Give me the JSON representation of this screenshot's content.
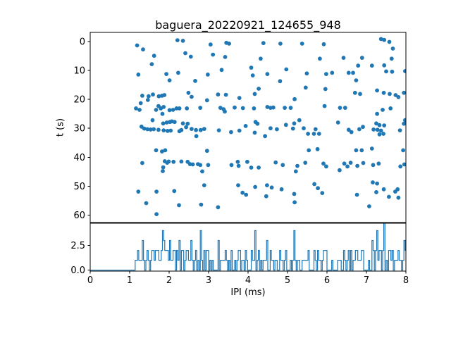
{
  "figure": {
    "title": "baguera_20220921_124655_948",
    "background_color": "#ffffff",
    "accent_color": "#1f77b4"
  },
  "chart_data": [
    {
      "type": "scatter",
      "title": "baguera_20220921_124655_948",
      "xlabel": "",
      "ylabel": "t (s)",
      "xlim": [
        0,
        8
      ],
      "ylim": [
        -3.2,
        62.6
      ],
      "y_inverted": true,
      "grid": false,
      "legend": "none",
      "xticks": [],
      "yticks": [
        0,
        10,
        20,
        30,
        40,
        50,
        60
      ],
      "ytick_labels": [
        "0",
        "10",
        "20",
        "30",
        "40",
        "50",
        "60"
      ],
      "marker_color": "#1f77b4",
      "points_xy_ipi_t": [
        [
          1.19,
          1.3
        ],
        [
          1.34,
          2.7
        ],
        [
          1.62,
          4.9
        ],
        [
          2.21,
          -0.5
        ],
        [
          2.35,
          -0.3
        ],
        [
          2.41,
          4.0
        ],
        [
          2.55,
          5.2
        ],
        [
          1.56,
          7.8
        ],
        [
          1.22,
          11.4
        ],
        [
          1.93,
          11.2
        ],
        [
          2.01,
          13.4
        ],
        [
          2.23,
          10.8
        ],
        [
          2.66,
          13.6
        ],
        [
          1.32,
          18.7
        ],
        [
          1.48,
          18.9
        ],
        [
          1.59,
          18.3
        ],
        [
          1.74,
          18.9
        ],
        [
          1.82,
          18.7
        ],
        [
          1.88,
          18.5
        ],
        [
          2.49,
          17.7
        ],
        [
          2.57,
          19.1
        ],
        [
          1.46,
          20.2
        ],
        [
          1.28,
          21.3
        ],
        [
          1.73,
          22.3
        ],
        [
          1.79,
          23.1
        ],
        [
          1.86,
          22.6
        ],
        [
          1.16,
          23.1
        ],
        [
          1.25,
          23.6
        ],
        [
          1.67,
          23.6
        ],
        [
          2.01,
          23.7
        ],
        [
          2.1,
          23.6
        ],
        [
          2.19,
          23.1
        ],
        [
          2.26,
          23.1
        ],
        [
          2.45,
          23.1
        ],
        [
          1.83,
          25.0
        ],
        [
          1.58,
          27.2
        ],
        [
          1.85,
          28.3
        ],
        [
          1.94,
          28.0
        ],
        [
          2.02,
          27.8
        ],
        [
          2.07,
          27.6
        ],
        [
          2.14,
          27.8
        ],
        [
          2.35,
          28.3
        ],
        [
          2.47,
          28.4
        ],
        [
          1.3,
          29.4
        ],
        [
          1.37,
          30.1
        ],
        [
          1.45,
          30.3
        ],
        [
          1.53,
          30.4
        ],
        [
          1.61,
          30.3
        ],
        [
          1.73,
          30.5
        ],
        [
          1.86,
          30.7
        ],
        [
          1.96,
          30.9
        ],
        [
          2.04,
          30.8
        ],
        [
          2.26,
          31.0
        ],
        [
          2.31,
          30.6
        ],
        [
          2.43,
          29.6
        ],
        [
          2.57,
          30.2
        ],
        [
          2.68,
          30.6
        ],
        [
          1.67,
          37.6
        ],
        [
          1.82,
          38.0
        ],
        [
          1.9,
          37.6
        ],
        [
          1.32,
          42.0
        ],
        [
          1.89,
          41.4
        ],
        [
          1.95,
          41.9
        ],
        [
          1.99,
          41.5
        ],
        [
          2.11,
          41.6
        ],
        [
          2.31,
          41.5
        ],
        [
          2.47,
          41.6
        ],
        [
          1.85,
          43.5
        ],
        [
          1.84,
          44.8
        ],
        [
          2.53,
          42.4
        ],
        [
          2.6,
          42.5
        ],
        [
          1.22,
          51.9
        ],
        [
          1.68,
          51.9
        ],
        [
          2.13,
          51.7
        ],
        [
          1.42,
          55.9
        ],
        [
          2.25,
          56.6
        ],
        [
          1.68,
          59.7
        ],
        [
          3.05,
          1.0
        ],
        [
          3.45,
          0.4
        ],
        [
          3.52,
          0.7
        ],
        [
          4.39,
          0.5
        ],
        [
          4.82,
          0.7
        ],
        [
          3.11,
          4.5
        ],
        [
          3.42,
          5.3
        ],
        [
          4.32,
          5.9
        ],
        [
          4.08,
          9.0
        ],
        [
          3.33,
          9.8
        ],
        [
          2.98,
          11.4
        ],
        [
          4.12,
          11.7
        ],
        [
          4.49,
          11.2
        ],
        [
          4.97,
          9.6
        ],
        [
          4.81,
          13.7
        ],
        [
          4.27,
          16.3
        ],
        [
          3.24,
          18.3
        ],
        [
          3.44,
          18.4
        ],
        [
          4.17,
          18.1
        ],
        [
          3.78,
          19.5
        ],
        [
          2.96,
          20.3
        ],
        [
          5.18,
          19.9
        ],
        [
          2.79,
          22.9
        ],
        [
          3.3,
          22.9
        ],
        [
          3.38,
          23.4
        ],
        [
          3.41,
          24.2
        ],
        [
          3.66,
          22.8
        ],
        [
          3.87,
          23.0
        ],
        [
          4.15,
          23.1
        ],
        [
          4.49,
          22.6
        ],
        [
          4.57,
          22.9
        ],
        [
          4.64,
          22.8
        ],
        [
          4.93,
          22.9
        ],
        [
          5.08,
          22.9
        ],
        [
          5.17,
          28.3
        ],
        [
          4.96,
          28.8
        ],
        [
          4.19,
          27.8
        ],
        [
          4.24,
          28.4
        ],
        [
          3.94,
          29.2
        ],
        [
          5.3,
          27.2
        ],
        [
          2.8,
          30.6
        ],
        [
          2.89,
          30.2
        ],
        [
          2.69,
          32.7
        ],
        [
          3.26,
          30.7
        ],
        [
          3.57,
          31.3
        ],
        [
          3.78,
          30.8
        ],
        [
          4.17,
          31.5
        ],
        [
          4.43,
          32.7
        ],
        [
          4.57,
          30.0
        ],
        [
          4.73,
          30.3
        ],
        [
          5.14,
          30.1
        ],
        [
          2.96,
          37.8
        ],
        [
          2.73,
          42.4
        ],
        [
          2.79,
          42.7
        ],
        [
          2.99,
          42.7
        ],
        [
          2.84,
          44.9
        ],
        [
          3.58,
          42.7
        ],
        [
          3.74,
          41.6
        ],
        [
          3.76,
          43.0
        ],
        [
          3.98,
          41.6
        ],
        [
          4.08,
          43.6
        ],
        [
          4.27,
          43.6
        ],
        [
          4.88,
          42.7
        ],
        [
          5.25,
          43.0
        ],
        [
          5.21,
          44.9
        ],
        [
          4.7,
          41.8
        ],
        [
          2.89,
          49.7
        ],
        [
          3.75,
          49.7
        ],
        [
          3.86,
          52.3
        ],
        [
          3.95,
          53.0
        ],
        [
          4.18,
          50.3
        ],
        [
          4.48,
          49.7
        ],
        [
          4.6,
          50.5
        ],
        [
          4.46,
          53.5
        ],
        [
          4.85,
          51.1
        ],
        [
          5.17,
          52.7
        ],
        [
          5.18,
          55.6
        ],
        [
          2.81,
          56.4
        ],
        [
          3.24,
          57.3
        ],
        [
          5.37,
          0.7
        ],
        [
          5.92,
          0.9
        ],
        [
          7.37,
          -0.9
        ],
        [
          7.45,
          -0.6
        ],
        [
          7.58,
          0.1
        ],
        [
          7.67,
          2.4
        ],
        [
          5.82,
          5.9
        ],
        [
          6.42,
          5.6
        ],
        [
          6.89,
          5.6
        ],
        [
          7.64,
          5.9
        ],
        [
          6.79,
          8.3
        ],
        [
          7.14,
          8.3
        ],
        [
          7.45,
          8.2
        ],
        [
          7.5,
          10.3
        ],
        [
          7.65,
          10.4
        ],
        [
          7.98,
          10.2
        ],
        [
          5.49,
          11.0
        ],
        [
          5.98,
          11.2
        ],
        [
          6.13,
          10.8
        ],
        [
          6.55,
          10.8
        ],
        [
          6.66,
          10.8
        ],
        [
          6.74,
          13.4
        ],
        [
          5.46,
          15.9
        ],
        [
          5.96,
          16.4
        ],
        [
          6.71,
          17.7
        ],
        [
          6.84,
          18.1
        ],
        [
          7.27,
          16.9
        ],
        [
          7.44,
          17.7
        ],
        [
          7.59,
          18.1
        ],
        [
          7.74,
          18.5
        ],
        [
          7.81,
          19.2
        ],
        [
          7.95,
          17.7
        ],
        [
          5.94,
          22.3
        ],
        [
          6.33,
          22.9
        ],
        [
          6.46,
          22.9
        ],
        [
          7.41,
          23.6
        ],
        [
          7.61,
          23.1
        ],
        [
          7.27,
          25.0
        ],
        [
          7.98,
          27.2
        ],
        [
          6.28,
          28.0
        ],
        [
          7.25,
          28.3
        ],
        [
          7.33,
          28.9
        ],
        [
          7.45,
          29.0
        ],
        [
          6.91,
          29.5
        ],
        [
          7.95,
          28.4
        ],
        [
          5.41,
          30.0
        ],
        [
          5.52,
          31.9
        ],
        [
          5.67,
          31.9
        ],
        [
          5.8,
          31.9
        ],
        [
          5.71,
          30.3
        ],
        [
          6.55,
          30.5
        ],
        [
          6.62,
          31.3
        ],
        [
          6.82,
          30.3
        ],
        [
          7.18,
          30.4
        ],
        [
          7.28,
          30.5
        ],
        [
          7.37,
          30.8
        ],
        [
          7.43,
          31.9
        ],
        [
          7.33,
          32.1
        ],
        [
          7.85,
          30.7
        ],
        [
          5.54,
          37.6
        ],
        [
          5.76,
          37.2
        ],
        [
          6.74,
          37.6
        ],
        [
          6.88,
          37.6
        ],
        [
          7.14,
          37.0
        ],
        [
          7.93,
          37.6
        ],
        [
          5.45,
          41.9
        ],
        [
          5.91,
          42.2
        ],
        [
          5.98,
          43.2
        ],
        [
          6.32,
          44.5
        ],
        [
          6.44,
          42.2
        ],
        [
          6.52,
          43.2
        ],
        [
          6.6,
          41.9
        ],
        [
          6.77,
          43.0
        ],
        [
          6.92,
          42.0
        ],
        [
          7.17,
          42.7
        ],
        [
          7.31,
          42.2
        ],
        [
          7.86,
          43.2
        ],
        [
          7.96,
          42.5
        ],
        [
          5.68,
          49.3
        ],
        [
          5.77,
          50.7
        ],
        [
          5.88,
          52.4
        ],
        [
          7.16,
          48.7
        ],
        [
          7.27,
          49.1
        ],
        [
          7.44,
          51.1
        ],
        [
          7.25,
          52.1
        ],
        [
          7.73,
          51.9
        ],
        [
          7.79,
          51.1
        ],
        [
          7.57,
          53.7
        ],
        [
          7.81,
          54.0
        ],
        [
          6.76,
          53.0
        ],
        [
          7.07,
          57.0
        ]
      ]
    },
    {
      "type": "line-histogram",
      "xlabel": "IPI (ms)",
      "ylabel": "",
      "xlim": [
        0,
        8
      ],
      "ylim": [
        -0.1,
        4.75
      ],
      "grid": false,
      "bin_width_ms": 0.03,
      "counts_source": "histogram of scatter points_xy_ipi_t x-values (IPI)",
      "xticks": [
        0,
        1,
        2,
        3,
        4,
        5,
        6,
        7,
        8
      ],
      "xtick_labels": [
        "0",
        "1",
        "2",
        "3",
        "4",
        "5",
        "6",
        "7",
        "8"
      ],
      "yticks": [
        0.0,
        2.5
      ],
      "ytick_labels": [
        "0.0",
        "2.5"
      ],
      "line_color": "#1f77b4"
    }
  ]
}
